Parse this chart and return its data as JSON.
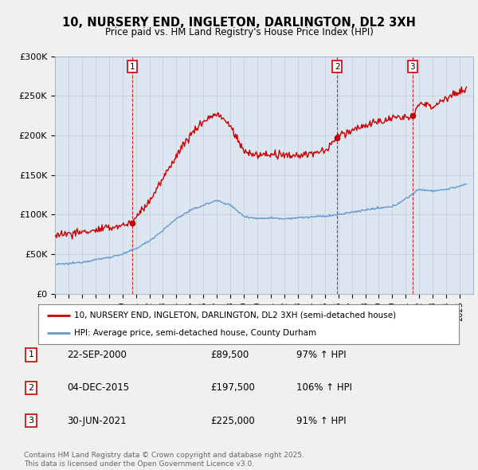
{
  "title": "10, NURSERY END, INGLETON, DARLINGTON, DL2 3XH",
  "subtitle": "Price paid vs. HM Land Registry's House Price Index (HPI)",
  "sale_prices": [
    89500,
    197500,
    225000
  ],
  "sale_labels": [
    "1",
    "2",
    "3"
  ],
  "sale_info": [
    {
      "label": "1",
      "date": "22-SEP-2000",
      "price": "£89,500",
      "hpi": "97% ↑ HPI"
    },
    {
      "label": "2",
      "date": "04-DEC-2015",
      "price": "£197,500",
      "hpi": "106% ↑ HPI"
    },
    {
      "label": "3",
      "date": "30-JUN-2021",
      "price": "£225,000",
      "hpi": "91% ↑ HPI"
    }
  ],
  "line_color_red": "#cc0000",
  "line_color_blue": "#6699cc",
  "vline_color": "#cc0000",
  "background_color": "#f0f0f0",
  "plot_bg_color": "#dce6f1",
  "legend_label_red": "10, NURSERY END, INGLETON, DARLINGTON, DL2 3XH (semi-detached house)",
  "legend_label_blue": "HPI: Average price, semi-detached house, County Durham",
  "footer": "Contains HM Land Registry data © Crown copyright and database right 2025.\nThis data is licensed under the Open Government Licence v3.0.",
  "ylim": [
    0,
    300000
  ],
  "yticks": [
    0,
    50000,
    100000,
    150000,
    200000,
    250000,
    300000
  ],
  "ytick_labels": [
    "£0",
    "£50K",
    "£100K",
    "£150K",
    "£200K",
    "£250K",
    "£300K"
  ],
  "xstart": 1995.0,
  "xend": 2026.0,
  "sale_decimal": [
    2000.72,
    2015.92,
    2021.5
  ],
  "hpi_anchors_x": [
    1995,
    1996,
    1997,
    1998,
    1999,
    2000,
    2001,
    2002,
    2003,
    2004,
    2005,
    2006,
    2007,
    2008,
    2009,
    2010,
    2011,
    2012,
    2013,
    2014,
    2015,
    2016,
    2017,
    2018,
    2019,
    2020,
    2021,
    2022,
    2023,
    2024,
    2025.5
  ],
  "hpi_anchors_y": [
    37000,
    38000,
    40000,
    43000,
    46000,
    50000,
    57000,
    67000,
    80000,
    95000,
    105000,
    112000,
    118000,
    112000,
    98000,
    95000,
    96000,
    95000,
    96000,
    97000,
    98000,
    100000,
    103000,
    106000,
    108000,
    110000,
    120000,
    132000,
    130000,
    132000,
    138000
  ],
  "red_anchors_x": [
    1995,
    1996,
    1997,
    1998,
    1999,
    2000.72,
    2001,
    2002,
    2003,
    2004,
    2005,
    2006,
    2007,
    2008,
    2009,
    2010,
    2011,
    2012,
    2013,
    2014,
    2015,
    2015.92,
    2016,
    2017,
    2018,
    2019,
    2020,
    2021,
    2021.5,
    2022,
    2023,
    2024,
    2025.5
  ],
  "red_anchors_y": [
    75000,
    76000,
    78000,
    80000,
    83000,
    89500,
    97000,
    117000,
    145000,
    175000,
    200000,
    218000,
    228000,
    212000,
    180000,
    175000,
    176000,
    174000,
    175000,
    177000,
    180000,
    197500,
    200000,
    207000,
    213000,
    217000,
    222000,
    222000,
    225000,
    240000,
    237000,
    248000,
    258000
  ]
}
